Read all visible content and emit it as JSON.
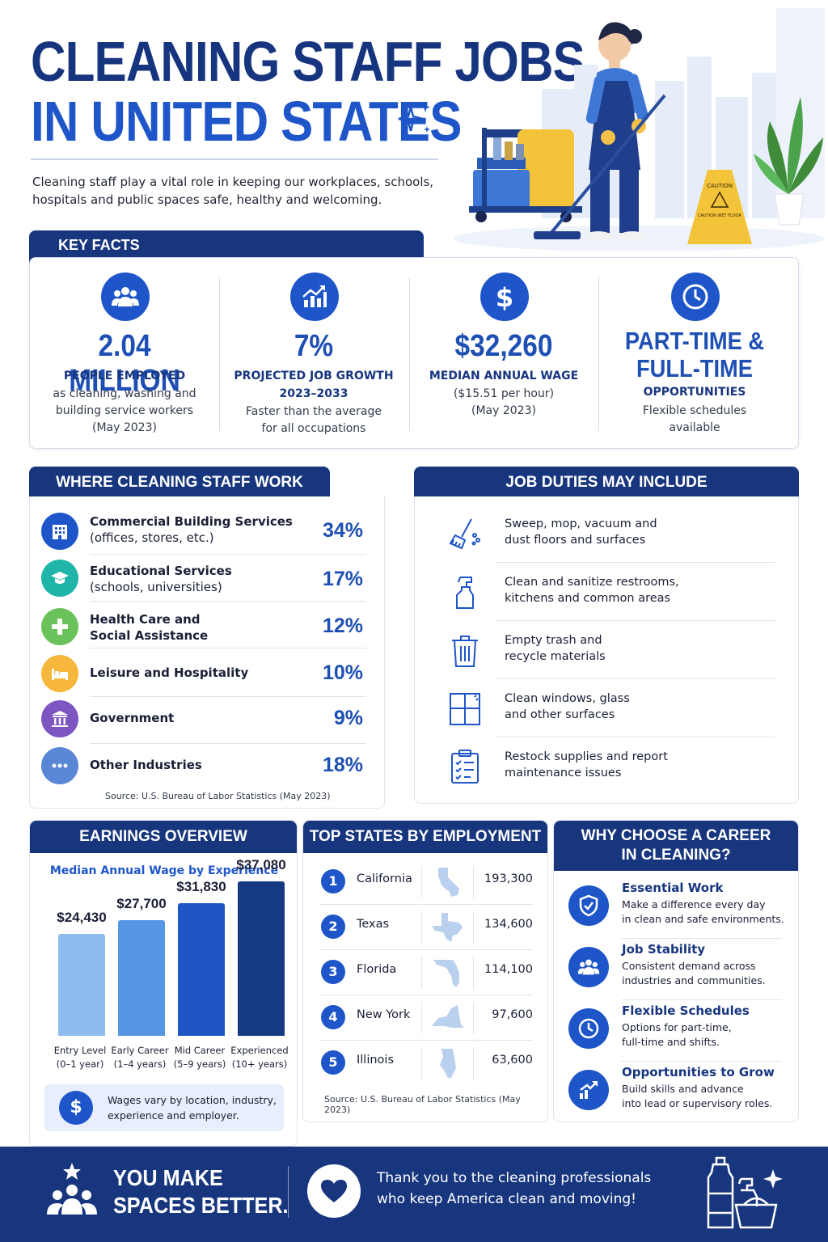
{
  "header": {
    "title_line1": "CLEANING STAFF JOBS",
    "title_line2": "IN UNITED STATES",
    "intro": "Cleaning staff play a vital role in keeping our workplaces, schools, hospitals and public spaces safe, healthy and welcoming."
  },
  "hero": {
    "sign_line1": "CAUTION",
    "sign_line2": "CAUTION WET FLOOR"
  },
  "key_facts": {
    "heading": "KEY FACTS",
    "items": [
      {
        "icon": "people-icon",
        "value": "2.04 MILLION",
        "label": "PEOPLE EMPLOYED",
        "detail_1": "as cleaning, washing and",
        "detail_2": "building service workers",
        "detail_3": "(May 2023)"
      },
      {
        "icon": "growth-chart-icon",
        "value": "7%",
        "label": "PROJECTED JOB GROWTH",
        "label_2": "2023–2033",
        "detail_1": "Faster than the average",
        "detail_2": "for all occupations"
      },
      {
        "icon": "dollar-icon",
        "value": "$32,260",
        "label": "MEDIAN ANNUAL WAGE",
        "detail_1": "($15.51 per hour)",
        "detail_2": "(May 2023)"
      },
      {
        "icon": "clock-icon",
        "value_1": "PART-TIME &",
        "value_2": "FULL-TIME",
        "label": "OPPORTUNITIES",
        "detail_1": "Flexible schedules",
        "detail_2": "available"
      }
    ]
  },
  "where_work": {
    "heading": "WHERE CLEANING STAFF WORK",
    "rows": [
      {
        "icon": "building-icon",
        "color": "#1e56c9",
        "title": "Commercial Building Services",
        "sub": "(offices, stores, etc.)",
        "pct": "34%"
      },
      {
        "icon": "graduation-cap-icon",
        "color": "#1fb5a8",
        "title": "Educational Services",
        "sub": "(schools, universities)",
        "pct": "17%"
      },
      {
        "icon": "medical-cross-icon",
        "color": "#6cc25a",
        "title": "Health Care and",
        "sub_bold": "Social Assistance",
        "pct": "12%"
      },
      {
        "icon": "bed-icon",
        "color": "#f6b73c",
        "title": "Leisure and Hospitality",
        "pct": "10%"
      },
      {
        "icon": "government-building-icon",
        "color": "#7d56c2",
        "title": "Government",
        "pct": "9%"
      },
      {
        "icon": "more-dots-icon",
        "color": "#5a86d6",
        "title": "Other Industries",
        "pct": "18%"
      }
    ],
    "source": "Source: U.S. Bureau of Labor Statistics (May 2023)"
  },
  "duties": {
    "heading": "JOB DUTIES MAY INCLUDE",
    "items": [
      {
        "icon": "broom-icon",
        "line1": "Sweep, mop, vacuum and",
        "line2": "dust floors and surfaces"
      },
      {
        "icon": "spray-bottle-icon",
        "line1": "Clean and sanitize restrooms,",
        "line2": "kitchens and common areas"
      },
      {
        "icon": "trash-can-icon",
        "line1": "Empty trash and",
        "line2": "recycle materials"
      },
      {
        "icon": "window-icon",
        "line1": "Clean windows, glass",
        "line2": "and other surfaces"
      },
      {
        "icon": "clipboard-icon",
        "line1": "Restock supplies and report",
        "line2": "maintenance issues"
      }
    ]
  },
  "earnings": {
    "heading": "EARNINGS OVERVIEW",
    "subtitle": "Median Annual Wage by Experience",
    "note": "Wages vary by location, industry, experience and employer."
  },
  "chart_data": {
    "type": "bar",
    "title": "Median Annual Wage by Experience",
    "categories": [
      "Entry Level",
      "Early Career",
      "Mid Career",
      "Experienced"
    ],
    "category_sublabels": [
      "(0–1 year)",
      "(1–4 years)",
      "(5–9 years)",
      "(10+ years)"
    ],
    "values": [
      24430,
      27700,
      31830,
      37080
    ],
    "value_labels": [
      "$24,430",
      "$27,700",
      "$31,830",
      "$37,080"
    ],
    "colors": [
      "#8fbcee",
      "#5596e3",
      "#1f56c6",
      "#163a82"
    ],
    "xlabel": "",
    "ylabel": "",
    "ylim": [
      0,
      40000
    ],
    "grid": false
  },
  "top_states": {
    "heading": "TOP STATES BY EMPLOYMENT",
    "rows": [
      {
        "rank": "1",
        "state": "California",
        "value": "193,300",
        "icon": "california-map-icon"
      },
      {
        "rank": "2",
        "state": "Texas",
        "value": "134,600",
        "icon": "texas-map-icon"
      },
      {
        "rank": "3",
        "state": "Florida",
        "value": "114,100",
        "icon": "florida-map-icon"
      },
      {
        "rank": "4",
        "state": "New York",
        "value": "97,600",
        "icon": "new-york-map-icon"
      },
      {
        "rank": "5",
        "state": "Illinois",
        "value": "63,600",
        "icon": "illinois-map-icon"
      }
    ],
    "source": "Source: U.S. Bureau of Labor Statistics (May 2023)"
  },
  "why": {
    "heading_1": "WHY CHOOSE A CAREER",
    "heading_2": "IN CLEANING?",
    "items": [
      {
        "icon": "shield-check-icon",
        "title": "Essential Work",
        "line1": "Make a difference every day",
        "line2": "in clean and safe environments."
      },
      {
        "icon": "people-icon",
        "title": "Job Stability",
        "line1": "Consistent demand across",
        "line2": "industries and communities."
      },
      {
        "icon": "clock-icon",
        "title": "Flexible Schedules",
        "line1": "Options for part-time,",
        "line2": "full-time and shifts."
      },
      {
        "icon": "growth-arrow-icon",
        "title": "Opportunities to Grow",
        "line1": "Build skills and advance",
        "line2": "into lead or supervisory roles."
      }
    ]
  },
  "footer": {
    "slogan_1": "YOU MAKE",
    "slogan_2": "SPACES BETTER.",
    "thanks_1": "Thank you to the cleaning professionals",
    "thanks_2": "who keep America clean and moving!"
  }
}
